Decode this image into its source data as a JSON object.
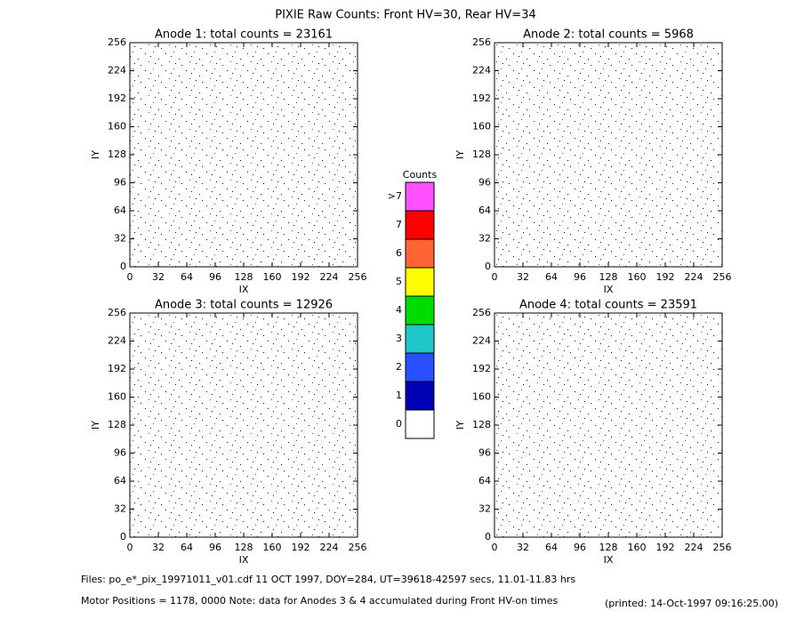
{
  "title": "PIXIE Raw Counts:  Front HV=30, Rear HV=34",
  "chart_data": [
    {
      "type": "heatmap",
      "title": "Anode 1: total counts = 23161",
      "xlabel": "IX",
      "ylabel": "IY",
      "xlim": [
        0,
        256
      ],
      "ylim": [
        0,
        256
      ],
      "xticks": [
        0,
        32,
        64,
        96,
        128,
        160,
        192,
        224,
        256
      ],
      "yticks": [
        0,
        32,
        64,
        96,
        128,
        160,
        192,
        224,
        256
      ]
    },
    {
      "type": "heatmap",
      "title": "Anode 2: total counts = 5968",
      "xlabel": "IX",
      "ylabel": "IY",
      "xlim": [
        0,
        256
      ],
      "ylim": [
        0,
        256
      ],
      "xticks": [
        0,
        32,
        64,
        96,
        128,
        160,
        192,
        224,
        256
      ],
      "yticks": [
        0,
        32,
        64,
        96,
        128,
        160,
        192,
        224,
        256
      ]
    },
    {
      "type": "heatmap",
      "title": "Anode 3: total counts = 12926",
      "xlabel": "IX",
      "ylabel": "IY",
      "xlim": [
        0,
        256
      ],
      "ylim": [
        0,
        256
      ],
      "xticks": [
        0,
        32,
        64,
        96,
        128,
        160,
        192,
        224,
        256
      ],
      "yticks": [
        0,
        32,
        64,
        96,
        128,
        160,
        192,
        224,
        256
      ]
    },
    {
      "type": "heatmap",
      "title": "Anode 4: total counts = 23591",
      "xlabel": "IX",
      "ylabel": "IY",
      "xlim": [
        0,
        256
      ],
      "ylim": [
        0,
        256
      ],
      "xticks": [
        0,
        32,
        64,
        96,
        128,
        160,
        192,
        224,
        256
      ],
      "yticks": [
        0,
        32,
        64,
        96,
        128,
        160,
        192,
        224,
        256
      ]
    }
  ],
  "colorbar": {
    "title": "Counts",
    "levels": [
      {
        "label": "0",
        "color": "#ffffff"
      },
      {
        "label": "1",
        "color": "#0000b4"
      },
      {
        "label": "2",
        "color": "#2850ff"
      },
      {
        "label": "3",
        "color": "#1ec8c8"
      },
      {
        "label": "4",
        "color": "#00dc00"
      },
      {
        "label": "5",
        "color": "#ffff00"
      },
      {
        "label": "6",
        "color": "#ff6432"
      },
      {
        "label": "7",
        "color": "#ff0000"
      },
      {
        "label": ">7",
        "color": "#ff50ff"
      }
    ]
  },
  "footer": {
    "files": "Files: po_e*_pix_19971011_v01.cdf     11 OCT 1997, DOY=284, UT=39618-42597 secs, 11.01-11.83 hrs",
    "motor": "Motor Positions = 1178, 0000    Note: data for Anodes 3 & 4 accumulated during Front HV-on times",
    "printed": "(printed: 14-Oct-1997 09:16:25.00)"
  }
}
